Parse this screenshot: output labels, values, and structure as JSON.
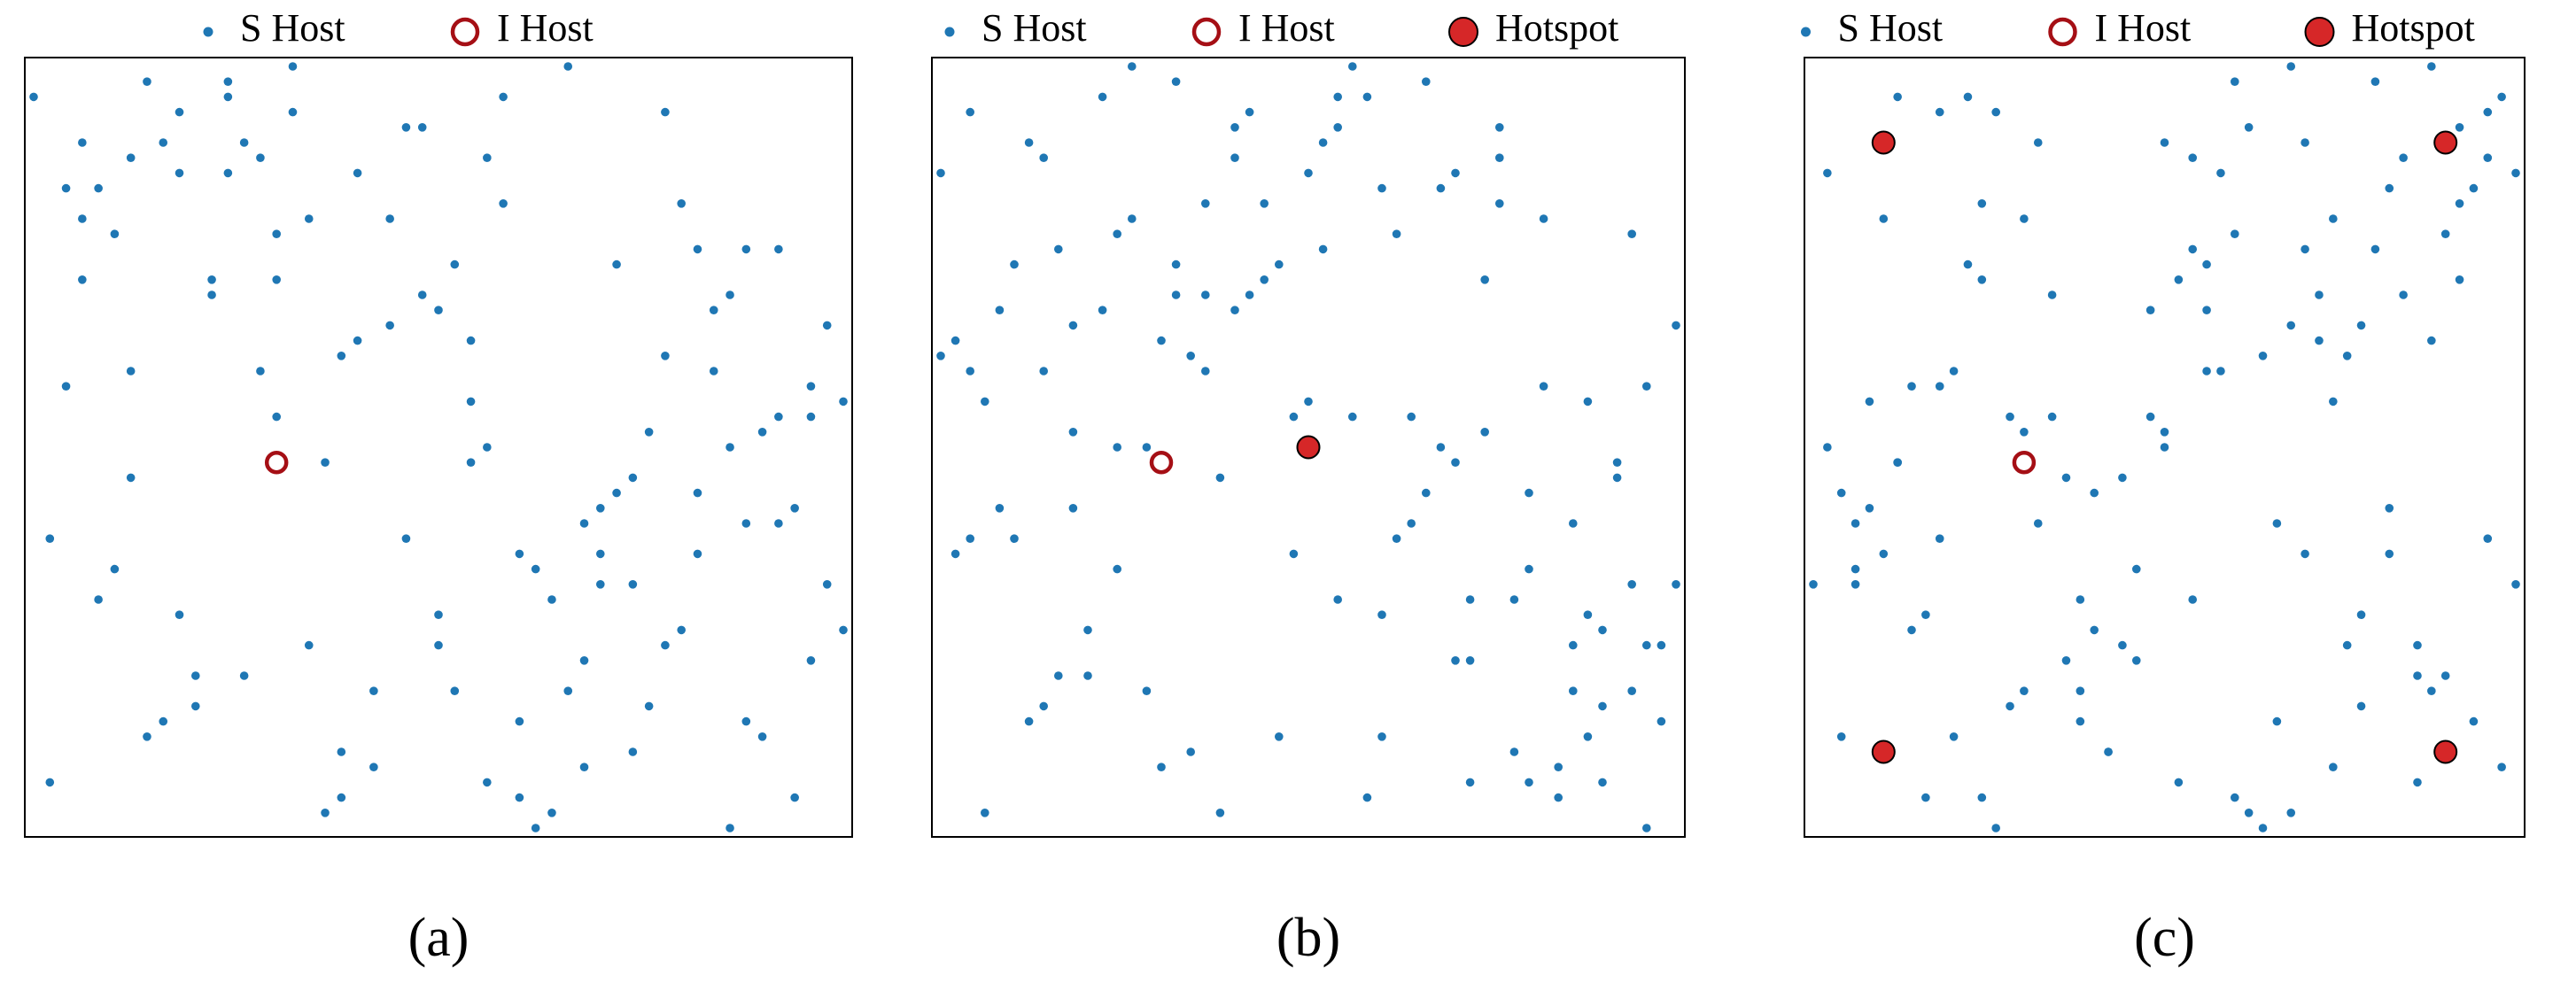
{
  "chart_data": [
    {
      "type": "scatter",
      "caption": "(a)",
      "xlim": [
        0,
        50
      ],
      "ylim": [
        0,
        50
      ],
      "series": [
        {
          "name": "S Host",
          "color": "#1f77b4",
          "marker": "dot",
          "x": [
            3,
            17,
            42,
            8,
            29,
            35,
            11,
            47,
            22,
            5,
            38,
            14,
            26,
            49,
            1,
            33,
            19,
            44,
            9,
            27,
            40,
            6,
            31,
            16,
            48,
            24,
            2,
            37,
            12,
            45,
            20,
            34,
            7,
            28,
            43,
            15,
            50,
            23,
            10,
            39,
            30,
            4,
            46,
            18,
            36,
            13,
            25,
            41,
            0,
            32,
            21,
            48,
            8,
            35,
            17,
            44,
            27,
            3,
            39,
            12,
            30,
            22,
            46,
            6,
            33,
            15,
            41,
            25,
            9,
            37,
            19,
            49,
            2,
            28,
            43,
            11,
            34,
            24,
            47,
            5,
            38,
            14,
            31,
            20,
            45,
            1,
            26,
            40,
            16,
            36,
            10,
            29,
            50,
            7,
            42,
            23,
            13,
            32,
            18,
            46,
            4,
            39,
            27,
            21,
            44,
            9,
            34,
            15,
            48,
            25,
            3,
            37,
            30,
            12,
            41,
            6,
            19,
            28,
            43,
            35
          ],
          "y": [
            45,
            12,
            30,
            7,
            48,
            21,
            36,
            2,
            40,
            17,
            26,
            44,
            9,
            33,
            19,
            50,
            5,
            38,
            14,
            28,
            41,
            23,
            0,
            47,
            11,
            35,
            29,
            16,
            43,
            6,
            32,
            20,
            49,
            3,
            25,
            39,
            13,
            46,
            8,
            31,
            18,
            42,
            27,
            1,
            37,
            10,
            34,
            22,
            48,
            15,
            4,
            29,
            45,
            18,
            40,
            7,
            24,
            36,
            12,
            49,
            2,
            33,
            20,
            44,
            9,
            27,
            38,
            14,
            47,
            5,
            31,
            16,
            42,
            25,
            0,
            35,
            11,
            46,
            21,
            39,
            8,
            30,
            17,
            43,
            26,
            3,
            37,
            13,
            50,
            22,
            10,
            41,
            28,
            6,
            34,
            19,
            45,
            1,
            24,
            38,
            15,
            47,
            32,
            9,
            20,
            43,
            4,
            36,
            27,
            12,
            40,
            23,
            7,
            48,
            18,
            30,
            2,
            44,
            35,
            16
          ]
        },
        {
          "name": "I Host",
          "color": "#a50f15",
          "marker": "ring",
          "x": [
            15
          ],
          "y": [
            24
          ]
        }
      ]
    },
    {
      "type": "scatter",
      "caption": "(b)",
      "xlim": [
        0,
        50
      ],
      "ylim": [
        0,
        50
      ],
      "series": [
        {
          "name": "S Host",
          "color": "#1f77b4",
          "marker": "dot",
          "x": [
            45,
            12,
            30,
            7,
            48,
            21,
            36,
            2,
            40,
            17,
            26,
            44,
            9,
            33,
            19,
            50,
            5,
            38,
            14,
            28,
            41,
            23,
            0,
            47,
            11,
            35,
            29,
            16,
            43,
            6,
            32,
            20,
            49,
            3,
            25,
            39,
            13,
            46,
            8,
            31,
            18,
            42,
            27,
            1,
            37,
            10,
            34,
            22,
            48,
            15,
            4,
            29,
            45,
            18,
            40,
            7,
            24,
            36,
            12,
            49,
            2,
            33,
            20,
            44,
            9,
            27,
            38,
            14,
            47,
            5,
            31,
            16,
            42,
            25,
            0,
            35,
            11,
            46,
            21,
            39,
            8,
            30,
            17,
            43,
            26,
            3,
            37,
            13,
            50,
            22,
            10,
            41,
            28,
            6,
            34,
            19,
            45,
            1,
            24,
            38,
            15,
            47,
            32,
            9,
            20,
            43,
            4,
            36,
            27,
            12,
            40,
            23,
            7,
            48,
            18,
            30,
            2,
            44,
            35,
            16
          ],
          "y": [
            3,
            17,
            42,
            8,
            29,
            35,
            11,
            47,
            22,
            5,
            38,
            14,
            26,
            49,
            1,
            33,
            19,
            44,
            9,
            27,
            40,
            6,
            31,
            16,
            48,
            24,
            2,
            37,
            12,
            45,
            20,
            34,
            7,
            28,
            43,
            15,
            50,
            23,
            10,
            39,
            30,
            4,
            46,
            18,
            36,
            13,
            25,
            41,
            0,
            32,
            21,
            48,
            8,
            35,
            17,
            44,
            27,
            3,
            39,
            12,
            30,
            22,
            46,
            6,
            33,
            15,
            41,
            25,
            9,
            37,
            19,
            49,
            2,
            28,
            43,
            11,
            34,
            24,
            47,
            5,
            38,
            14,
            31,
            20,
            45,
            1,
            26,
            40,
            16,
            36,
            10,
            29,
            50,
            7,
            42,
            23,
            13,
            32,
            18,
            46,
            4,
            39,
            27,
            21,
            44,
            9,
            34,
            15,
            48,
            25,
            3,
            37,
            30,
            12,
            41,
            6,
            19,
            28,
            43,
            35
          ]
        },
        {
          "name": "I Host",
          "color": "#a50f15",
          "marker": "ring",
          "x": [
            15
          ],
          "y": [
            24
          ]
        },
        {
          "name": "Hotspot",
          "color": "#d62728",
          "marker": "disc",
          "x": [
            25
          ],
          "y": [
            25
          ]
        }
      ]
    },
    {
      "type": "scatter",
      "caption": "(c)",
      "xlim": [
        0,
        50
      ],
      "ylim": [
        0,
        50
      ],
      "series": [
        {
          "name": "S Host",
          "color": "#1f77b4",
          "marker": "dot",
          "x": [
            3,
            17,
            42,
            8,
            29,
            35,
            11,
            47,
            22,
            5,
            38,
            14,
            26,
            49,
            1,
            33,
            19,
            44,
            9,
            27,
            40,
            6,
            31,
            16,
            48,
            24,
            2,
            37,
            12,
            45,
            20,
            34,
            7,
            28,
            43,
            15,
            50,
            23,
            10,
            39,
            30,
            4,
            46,
            18,
            36,
            13,
            25,
            41,
            0,
            32,
            21,
            48,
            8,
            35,
            17,
            44,
            27,
            3,
            39,
            12,
            30,
            22,
            46,
            6,
            33,
            15,
            41,
            25,
            9,
            37,
            19,
            49,
            2,
            28,
            43,
            11,
            34,
            24,
            47,
            5,
            38,
            14,
            31,
            20,
            45,
            1,
            26,
            40,
            16,
            36,
            10,
            29,
            50,
            7,
            42,
            23,
            13,
            32,
            18,
            46,
            4,
            39,
            27,
            21,
            44,
            9,
            34,
            15,
            48,
            25,
            3,
            37,
            30,
            12,
            41,
            6,
            19,
            28,
            43,
            35
          ],
          "y": [
            16,
            35,
            44,
            2,
            30,
            18,
            48,
            7,
            23,
            40,
            12,
            27,
            36,
            4,
            43,
            20,
            9,
            32,
            47,
            15,
            38,
            24,
            1,
            45,
            19,
            34,
            6,
            28,
            41,
            10,
            22,
            50,
            13,
            37,
            3,
            26,
            43,
            17,
            30,
            8,
            39,
            21,
            46,
            11,
            35,
            0,
            25,
            42,
            16,
            31,
            5,
            47,
            14,
            38,
            27,
            9,
            44,
            20,
            33,
            2,
            49,
            12,
            36,
            24,
            7,
            40,
            18,
            45,
            29,
            4,
            15,
            48,
            22,
            34,
            10,
            37,
            1,
            27,
            42,
            18,
            31,
            8,
            46,
            13,
            39,
            25,
            3,
            49,
            20,
            32,
            6,
            43,
            16,
            29,
            35,
            11,
            47,
            0,
            23,
            41,
            28,
            14,
            38,
            5,
            50,
            19,
            33,
            9,
            44,
            26,
            17,
            40,
            2,
            36,
            21,
            48,
            7,
            30,
            12,
            45
          ]
        },
        {
          "name": "I Host",
          "color": "#a50f15",
          "marker": "ring",
          "x": [
            15
          ],
          "y": [
            24
          ]
        },
        {
          "name": "Hotspot",
          "color": "#d62728",
          "marker": "disc",
          "x": [
            5,
            45,
            5,
            45
          ],
          "y": [
            45,
            45,
            5,
            5
          ]
        }
      ]
    }
  ]
}
